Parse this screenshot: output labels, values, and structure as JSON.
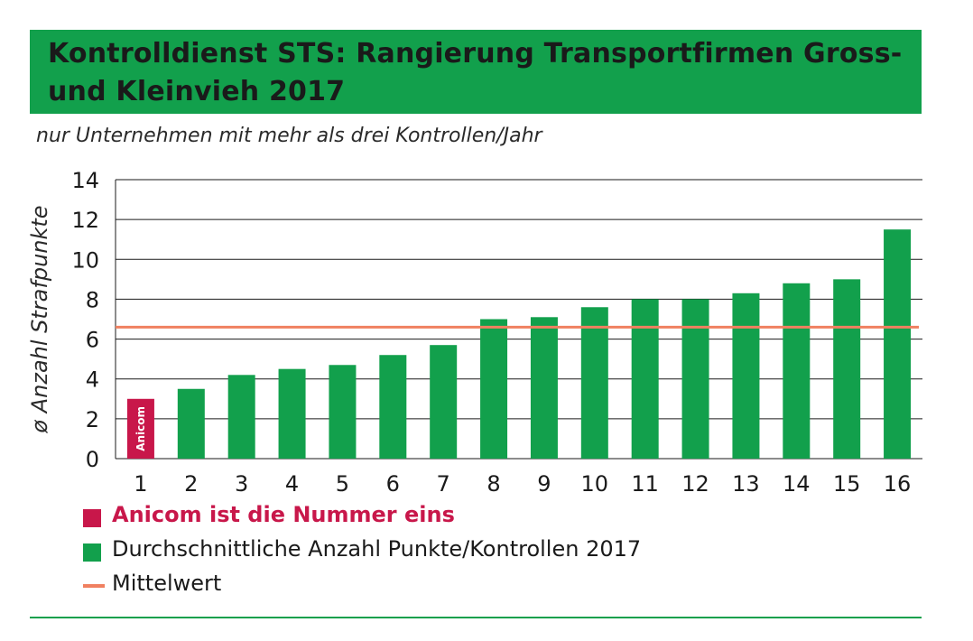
{
  "header": {
    "title": "Kontrolldienst STS: Rangierung Transportfirmen Gross- und Kleinvieh 2017",
    "subtitle": "nur Unternehmen mit mehr als drei Kontrollen/Jahr"
  },
  "chart_data": {
    "type": "bar",
    "title": "Kontrolldienst STS: Rangierung Transportfirmen Gross- und Kleinvieh 2017",
    "subtitle": "nur Unternehmen mit mehr als drei Kontrollen/Jahr",
    "xlabel": "",
    "ylabel": "ø Anzahl Strafpunkte",
    "ylim": [
      0,
      14
    ],
    "yticks": [
      0,
      2,
      4,
      6,
      8,
      10,
      12,
      14
    ],
    "categories": [
      "1",
      "2",
      "3",
      "4",
      "5",
      "6",
      "7",
      "8",
      "9",
      "10",
      "11",
      "12",
      "13",
      "14",
      "15",
      "16"
    ],
    "values": [
      3.0,
      3.5,
      4.2,
      4.5,
      4.7,
      5.2,
      5.7,
      7.0,
      7.1,
      7.6,
      8.0,
      8.0,
      8.3,
      8.8,
      9.0,
      11.5
    ],
    "highlight_index": 0,
    "highlight_label": "Anicom",
    "series": [
      {
        "name": "Anicom ist die Nummer eins",
        "color": "#c8174a",
        "type": "highlight"
      },
      {
        "name": "Durchschnittliche Anzahl Punkte/Kontrollen 2017",
        "color": "#12a04c",
        "type": "bar"
      },
      {
        "name": "Mittelwert",
        "color": "#f08060",
        "type": "line",
        "value": 6.6
      }
    ],
    "grid": true,
    "legend_position": "bottom-left"
  },
  "colors": {
    "accent_green": "#12a04c",
    "highlight_red": "#c8174a",
    "mean_line": "#f08060"
  }
}
